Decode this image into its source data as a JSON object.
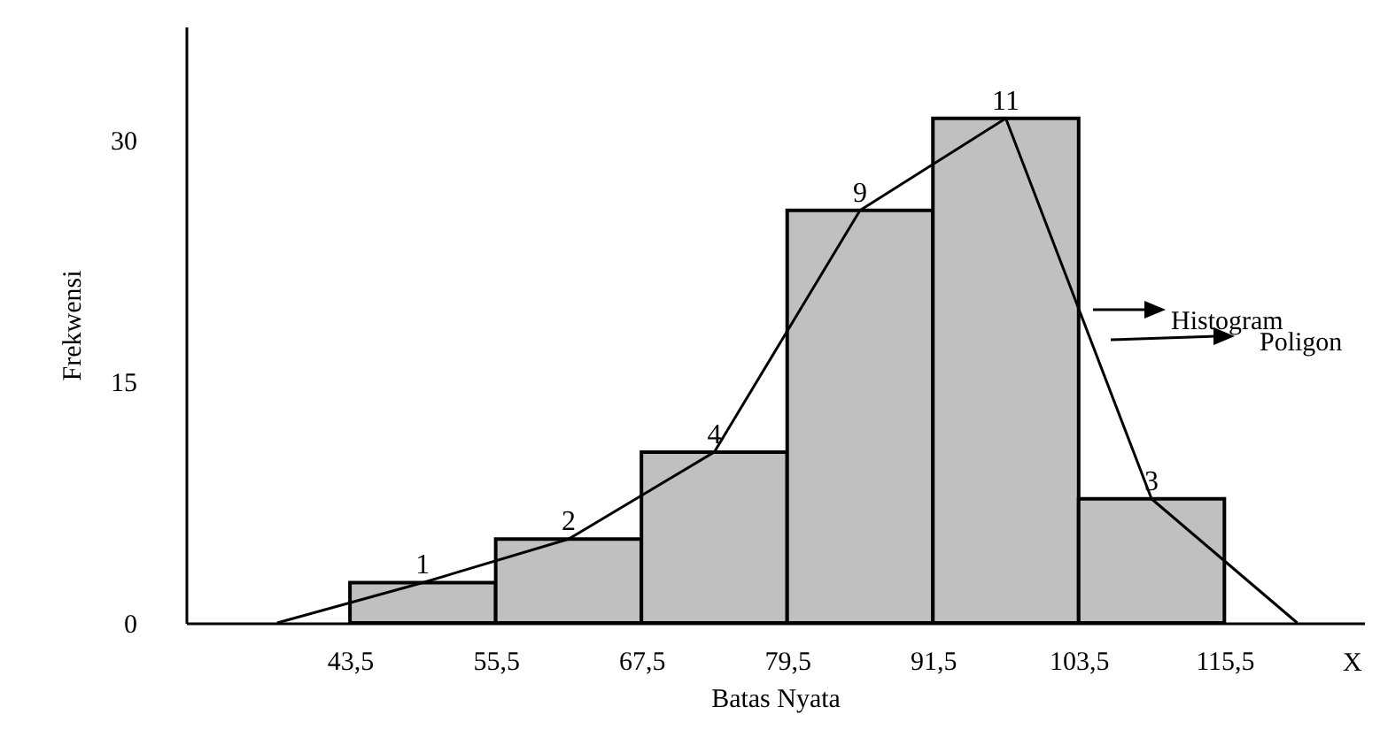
{
  "chart_data": {
    "type": "histogram",
    "xlabel": "Batas Nyata",
    "ylabel": "Frekwensi",
    "bins": [
      43.5,
      55.5,
      67.5,
      79.5,
      91.5,
      103.5,
      115.5
    ],
    "values": [
      2.5,
      5.2,
      10.6,
      25.6,
      31.3,
      7.7
    ],
    "color": "#c0c0c0",
    "series": [
      {
        "type": "line",
        "color": "#000000",
        "x": [
          37.5,
          49.5,
          61.5,
          73.5,
          85.5,
          97.5,
          109.5,
          121.5
        ],
        "values": [
          0,
          2.5,
          5.2,
          10.6,
          25.6,
          31.3,
          7.7,
          0
        ]
      }
    ],
    "xlim": [
      30,
      127
    ],
    "xticks": [
      {
        "value": 43.5,
        "label": "43,5"
      },
      {
        "value": 55.5,
        "label": "55,5"
      },
      {
        "value": 67.5,
        "label": "67,5"
      },
      {
        "value": 79.5,
        "label": "79,5"
      },
      {
        "value": 91.5,
        "label": "91,5"
      },
      {
        "value": 103.5,
        "label": "103,5"
      },
      {
        "value": 115.5,
        "label": "115,5"
      }
    ],
    "ylim": [
      0,
      37
    ],
    "yticks": [
      0,
      15,
      30
    ],
    "annotations": [
      "Histogram",
      "Poligon",
      "X",
      {
        "text": "1",
        "x": 49.5,
        "y": 2.5
      },
      {
        "text": "2",
        "x": 61.5,
        "y": 5.2
      },
      {
        "text": "4",
        "x": 73.5,
        "y": 10.6
      },
      {
        "text": "9",
        "x": 85.5,
        "y": 25.6
      },
      {
        "text": "11",
        "x": 97.5,
        "y": 31.3
      },
      {
        "text": "3",
        "x": 109.5,
        "y": 7.7
      }
    ],
    "grid": false
  }
}
